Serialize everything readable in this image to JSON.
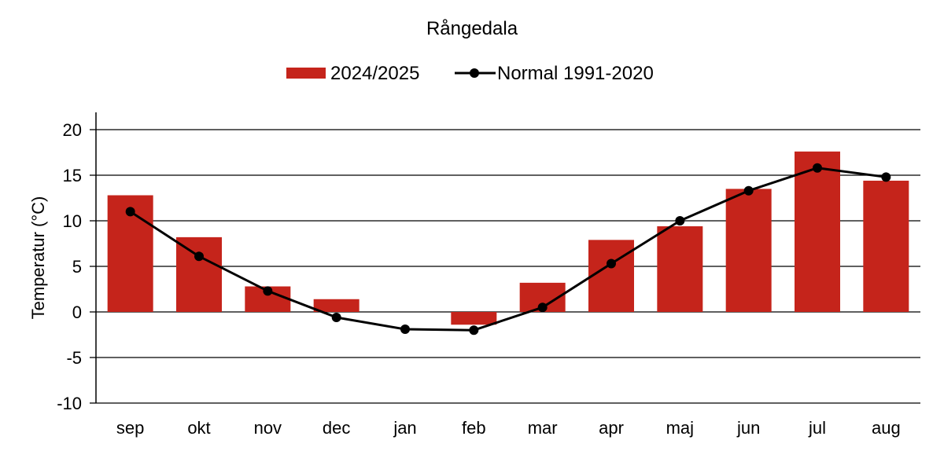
{
  "chart_data": {
    "type": "bar",
    "title": "Rångedala",
    "ylabel": "Temperatur (°C)",
    "xlabel": "",
    "categories": [
      "sep",
      "okt",
      "nov",
      "dec",
      "jan",
      "feb",
      "mar",
      "apr",
      "maj",
      "jun",
      "jul",
      "aug"
    ],
    "ylim": [
      -10,
      20
    ],
    "yticks": [
      20,
      15,
      10,
      5,
      0,
      -5,
      -10
    ],
    "grid": true,
    "legend_position": "top-center",
    "series": [
      {
        "name": "2024/2025",
        "kind": "bar",
        "color": "#c5241b",
        "values": [
          12.8,
          8.2,
          2.8,
          1.4,
          0.0,
          -1.4,
          3.2,
          7.9,
          9.4,
          13.5,
          17.6,
          14.4
        ]
      },
      {
        "name": "Normal 1991-2020",
        "kind": "line",
        "color": "#000000",
        "values": [
          11.0,
          6.1,
          2.3,
          -0.6,
          -1.9,
          -2.0,
          0.5,
          5.3,
          10.0,
          13.3,
          15.8,
          14.8
        ]
      }
    ]
  }
}
